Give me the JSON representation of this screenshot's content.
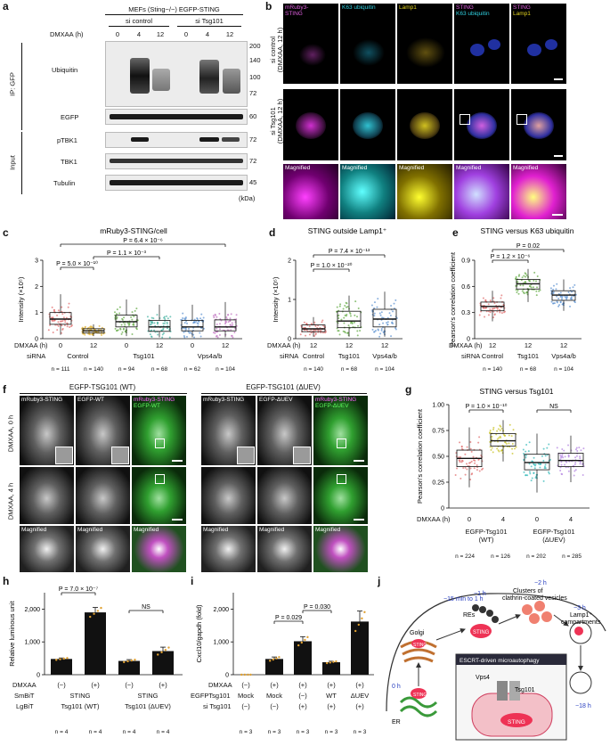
{
  "panel_letters": [
    "a",
    "b",
    "c",
    "d",
    "e",
    "f",
    "g",
    "h",
    "i",
    "j"
  ],
  "a": {
    "header_cells": "MEFs (Sting−/−) EGFP-STING",
    "si_control": "si control",
    "si_tsg101": "si Tsg101",
    "dmxaa_label": "DMXAA (h)",
    "timepoints": [
      "0",
      "4",
      "12",
      "0",
      "4",
      "12"
    ],
    "ip_label": "IP: GFP",
    "input_label": "Input",
    "rows": [
      "Ubiquitin",
      "EGFP",
      "pTBK1",
      "TBK1",
      "Tubulin"
    ],
    "mw_ubiquitin": [
      "200",
      "140",
      "100",
      "72"
    ],
    "mw_egfp": "60",
    "mw_ptbk1": "72",
    "mw_tbk1": "72",
    "mw_tubulin": "45",
    "kda": "(kDa)"
  },
  "b": {
    "col_labels": [
      "mRuby3-\nSTING",
      "K63 ubiquitin",
      "Lamp1",
      "STING\nK63 ubiquitin",
      "STING\nLamp1"
    ],
    "row1": "si control\n(DMXAA, 12 h)",
    "row2": "si Tsg101\n(DMXAA, 12 h)",
    "magnified": "Magnified"
  },
  "c": {
    "title": "mRuby3-STING/cell",
    "ylabel": "Intensity (×10⁵)",
    "yticks": [
      "0",
      "1",
      "2",
      "3"
    ],
    "dmxaa_label": "DMXAA (h)",
    "sirna_label": "siRNA",
    "dmxaa": [
      "0",
      "12",
      "0",
      "12",
      "0",
      "12"
    ],
    "groups": [
      "Control",
      "Tsg101",
      "Vps4a/b"
    ],
    "ns": [
      "n = 111",
      "n = 140",
      "n = 94",
      "n = 68",
      "n = 62",
      "n = 104"
    ],
    "p1": "P = 5.0 × 10⁻¹⁰",
    "p2": "P = 1.1 × 10⁻³",
    "p3": "P = 6.4 × 10⁻⁶"
  },
  "d": {
    "title": "STING outside Lamp1⁺",
    "ylabel": "Intensity (×10⁵)",
    "yticks": [
      "0",
      "1",
      "2"
    ],
    "dmxaa_label": "DMXAA (h)",
    "sirna_label": "siRNA",
    "dmxaa": [
      "12",
      "12",
      "12"
    ],
    "groups": [
      "Control",
      "Tsg101",
      "Vps4a/b"
    ],
    "ns": [
      "n = 140",
      "n = 68",
      "n = 104"
    ],
    "p1": "P = 1.0 × 10⁻²⁰",
    "p2": "P = 7.4 × 10⁻¹³"
  },
  "e": {
    "title": "STING versus K63 ubiquitin",
    "ylabel": "Pearson's correlation coefficient",
    "yticks": [
      "0",
      "0.3",
      "0.6",
      "0.9"
    ],
    "dmxaa_label": "DMXAA (h)",
    "sirna_label": "siRNA",
    "dmxaa": [
      "12",
      "12",
      "12"
    ],
    "groups": [
      "Control",
      "Tsg101",
      "Vps4a/b"
    ],
    "ns": [
      "n = 140",
      "n = 68",
      "n = 104"
    ],
    "p1": "P = 1.2 × 10⁻⁶",
    "p2": "P = 0.02"
  },
  "f": {
    "wt_header": "EGFP-TSG101 (WT)",
    "duev_header": "EGFP-TSG101 (ΔUEV)",
    "cols": [
      "mRuby3-STING",
      "EGFP-WT",
      "mRuby3-STING\nEGFP-WT",
      "mRuby3-STING",
      "EGFP-ΔUEV",
      "mRuby3-STING\nEGFP-ΔUEV"
    ],
    "row1": "DMXAA, 0 h",
    "row2": "DMXAA, 4 h",
    "magnified": "Magnified"
  },
  "g": {
    "title": "STING versus Tsg101",
    "ylabel": "Pearson's correlation coefficient",
    "yticks": [
      "0",
      "0.25",
      "0.50",
      "0.75",
      "1.00"
    ],
    "dmxaa_label": "DMXAA (h)",
    "dmxaa": [
      "0",
      "4",
      "0",
      "4"
    ],
    "groups": [
      "EGFP-Tsg101\n(WT)",
      "EGFP-Tsg101\n(ΔUEV)"
    ],
    "ns": [
      "n = 224",
      "n = 126",
      "n = 202",
      "n = 285"
    ],
    "p1": "P = 1.0 × 10⁻¹⁰",
    "p2": "NS"
  },
  "h": {
    "ylabel": "Relative luminous unit",
    "yticks": [
      "0",
      "1,000",
      "2,000"
    ],
    "dmxaa_label": "DMXAA",
    "smbit_label": "SmBiT",
    "lgbit_label": "LgBiT",
    "dmxaa": [
      "(−)",
      "(+)",
      "(−)",
      "(+)"
    ],
    "smbit": [
      "STING",
      "STING"
    ],
    "lgbit": [
      "Tsg101 (WT)",
      "Tsg101 (ΔUEV)"
    ],
    "ns": [
      "n = 4",
      "n = 4",
      "n = 4",
      "n = 4"
    ],
    "p1": "P = 7.0 × 10⁻⁷",
    "p2": "NS"
  },
  "i": {
    "ylabel": "Cxcl10/gapdh (fold)",
    "yticks": [
      "0",
      "1,000",
      "2,000"
    ],
    "dmxaa_label": "DMXAA",
    "egfp_label": "EGFPTsg101",
    "si_label": "si Tsg101",
    "dmxaa": [
      "(−)",
      "(+)",
      "(+)",
      "(+)",
      "(+)"
    ],
    "egfp": [
      "Mock",
      "Mock",
      "(−)",
      "WT",
      "ΔUEV"
    ],
    "si": [
      "(−)",
      "(−)",
      "(+)",
      "(+)",
      "(+)"
    ],
    "ns": [
      "n = 3",
      "n = 3",
      "n = 3",
      "n = 3",
      "n = 3"
    ],
    "p1": "P = 0.029",
    "p2": "P = 0.030"
  },
  "j": {
    "t1": "−15 min to 1 h",
    "golgi": "Golgi",
    "t2": "−1 h",
    "res": "REs",
    "t3": "−2 h",
    "clusters": "Clusters of\nclathrin-coated vesicles",
    "t4": "−3 h",
    "lamp": "Lamp1⁺\ncompartments",
    "t5": "−18 h",
    "t0": "0 h",
    "er": "ER",
    "escrt": "ESCRT-driven microautophagy",
    "vps4": "Vps4",
    "tsg101": "Tsg101",
    "sting": "STING"
  },
  "chart_data": [
    {
      "type": "box",
      "panel": "c",
      "title": "mRuby3-STING/cell",
      "ylabel": "Intensity (×10⁵)",
      "ylim": [
        0,
        3
      ],
      "categories": [
        "Control 0",
        "Control 12",
        "Tsg101 0",
        "Tsg101 12",
        "Vps4a/b 0",
        "Vps4a/b 12"
      ],
      "median": [
        0.75,
        0.3,
        0.65,
        0.45,
        0.45,
        0.45
      ],
      "q1": [
        0.55,
        0.22,
        0.45,
        0.28,
        0.3,
        0.3
      ],
      "q3": [
        1.0,
        0.38,
        0.9,
        0.7,
        0.7,
        0.72
      ],
      "whisker_low": [
        0.15,
        0.1,
        0.1,
        0.05,
        0.05,
        0.05
      ],
      "whisker_high": [
        1.7,
        0.55,
        1.5,
        1.3,
        1.3,
        1.4
      ],
      "colors": [
        "#e06a6a",
        "#e0b030",
        "#60a840",
        "#40b0a0",
        "#5a90d0",
        "#c070c0"
      ]
    },
    {
      "type": "box",
      "panel": "d",
      "title": "STING outside Lamp1⁺",
      "ylabel": "Intensity (×10⁵)",
      "ylim": [
        0,
        2
      ],
      "categories": [
        "Control",
        "Tsg101",
        "Vps4a/b"
      ],
      "median": [
        0.25,
        0.45,
        0.5
      ],
      "q1": [
        0.18,
        0.28,
        0.3
      ],
      "q3": [
        0.35,
        0.7,
        0.75
      ],
      "whisker_low": [
        0.05,
        0.05,
        0.05
      ],
      "whisker_high": [
        0.55,
        1.1,
        1.2
      ],
      "colors": [
        "#e06a6a",
        "#60a840",
        "#5a90d0"
      ]
    },
    {
      "type": "box",
      "panel": "e",
      "title": "STING versus K63 ubiquitin",
      "ylabel": "Pearson's correlation coefficient",
      "ylim": [
        0,
        0.9
      ],
      "categories": [
        "Control",
        "Tsg101",
        "Vps4a/b"
      ],
      "median": [
        0.37,
        0.63,
        0.5
      ],
      "q1": [
        0.32,
        0.57,
        0.44
      ],
      "q3": [
        0.42,
        0.68,
        0.55
      ],
      "whisker_low": [
        0.2,
        0.42,
        0.32
      ],
      "whisker_high": [
        0.55,
        0.8,
        0.68
      ],
      "colors": [
        "#e06a6a",
        "#60a840",
        "#5a90d0"
      ]
    },
    {
      "type": "box",
      "panel": "g",
      "title": "STING versus Tsg101",
      "ylabel": "Pearson's correlation coefficient",
      "ylim": [
        0,
        1
      ],
      "categories": [
        "WT 0",
        "WT 4",
        "ΔUEV 0",
        "ΔUEV 4"
      ],
      "median": [
        0.48,
        0.65,
        0.44,
        0.46
      ],
      "q1": [
        0.4,
        0.6,
        0.37,
        0.4
      ],
      "q3": [
        0.56,
        0.72,
        0.52,
        0.53
      ],
      "whisker_low": [
        0.2,
        0.45,
        0.15,
        0.25
      ],
      "whisker_high": [
        0.78,
        0.85,
        0.72,
        0.7
      ],
      "colors": [
        "#e06a6a",
        "#c8c020",
        "#30b8b8",
        "#b080e0"
      ]
    },
    {
      "type": "bar",
      "panel": "h",
      "ylabel": "Relative luminous unit",
      "ylim": [
        0,
        2500
      ],
      "categories": [
        "(−) WT",
        "(+) WT",
        "(−) ΔUEV",
        "(+) ΔUEV"
      ],
      "values": [
        480,
        1900,
        420,
        720
      ],
      "errors": [
        30,
        150,
        40,
        120
      ]
    },
    {
      "type": "bar",
      "panel": "i",
      "ylabel": "Cxcl10/gapdh (fold)",
      "ylim": [
        0,
        2500
      ],
      "categories": [
        "Mock (−)",
        "Mock (+)",
        "(−) si",
        "WT si",
        "ΔUEV si"
      ],
      "values": [
        0,
        480,
        1020,
        380,
        1620
      ],
      "errors": [
        0,
        60,
        140,
        30,
        320
      ]
    }
  ]
}
